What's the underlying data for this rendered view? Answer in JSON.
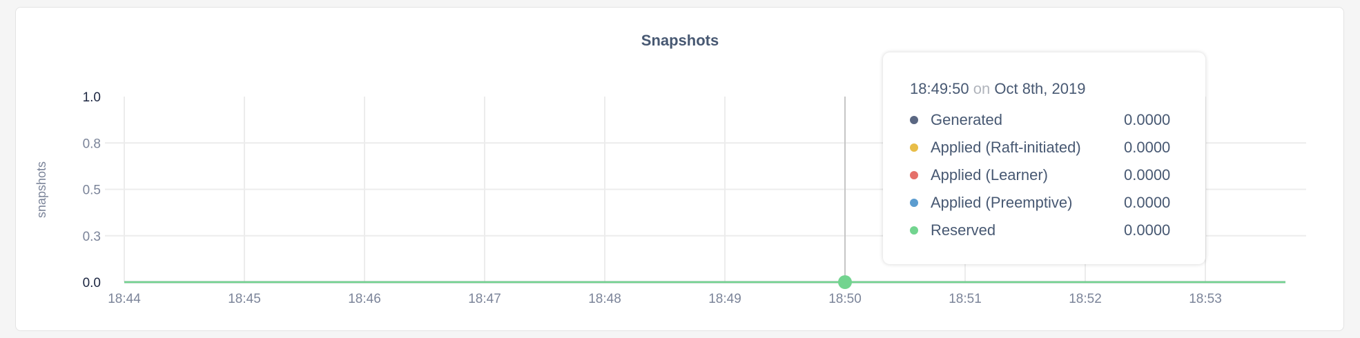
{
  "chart_data": {
    "type": "line",
    "title": "Snapshots",
    "ylabel": "snapshots",
    "xlabel": "",
    "x_ticks": [
      "18:44",
      "18:45",
      "18:46",
      "18:47",
      "18:48",
      "18:49",
      "18:50",
      "18:51",
      "18:52",
      "18:53"
    ],
    "y_ticks": [
      0,
      0.25,
      0.5,
      0.75,
      1.0
    ],
    "y_tick_labels": [
      "0.0",
      "0.3",
      "0.5",
      "0.8",
      "1.0"
    ],
    "ylim": [
      0,
      1.0
    ],
    "xlim": [
      "18:44",
      "18:53:40"
    ],
    "grid": true,
    "series": [
      {
        "name": "Generated",
        "color": "#5a6782",
        "values": [
          [
            "18:44",
            0
          ],
          [
            "18:53:40",
            0
          ]
        ]
      },
      {
        "name": "Applied (Raft-initiated)",
        "color": "#e8bd48",
        "values": [
          [
            "18:44",
            0
          ],
          [
            "18:53:40",
            0
          ]
        ]
      },
      {
        "name": "Applied (Learner)",
        "color": "#e5706a",
        "values": [
          [
            "18:44",
            0
          ],
          [
            "18:53:40",
            0
          ]
        ]
      },
      {
        "name": "Applied (Preemptive)",
        "color": "#5b9ccf",
        "values": [
          [
            "18:44",
            0
          ],
          [
            "18:53:40",
            0
          ]
        ]
      },
      {
        "name": "Reserved",
        "color": "#72d48f",
        "values": [
          [
            "18:44",
            0
          ],
          [
            "18:53:40",
            0
          ]
        ]
      }
    ],
    "cursor": "18:50"
  },
  "tooltip": {
    "time": "18:49:50",
    "on": "on",
    "date": "Oct 8th, 2019",
    "rows": [
      {
        "label": "Generated",
        "value": "0.0000",
        "color": "#5a6782"
      },
      {
        "label": "Applied (Raft-initiated)",
        "value": "0.0000",
        "color": "#e8bd48"
      },
      {
        "label": "Applied (Learner)",
        "value": "0.0000",
        "color": "#e5706a"
      },
      {
        "label": "Applied (Preemptive)",
        "value": "0.0000",
        "color": "#5b9ccf"
      },
      {
        "label": "Reserved",
        "value": "0.0000",
        "color": "#72d48f"
      }
    ]
  }
}
